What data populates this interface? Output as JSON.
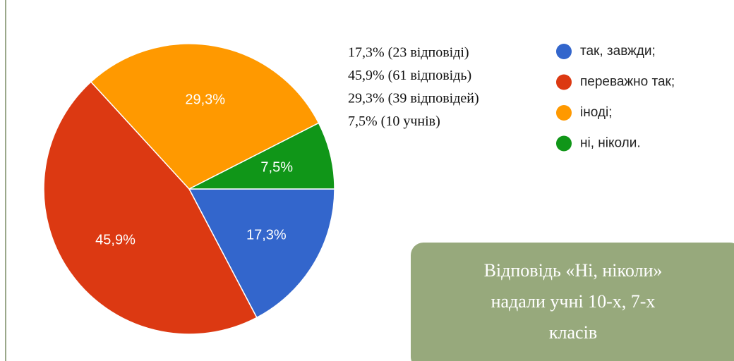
{
  "chart_data": {
    "type": "pie",
    "categories": [
      "так, завжди;",
      "переважно так;",
      "іноді;",
      "ні, ніколи."
    ],
    "values": [
      17.3,
      45.9,
      29.3,
      7.5
    ],
    "value_labels": [
      "17,3%",
      "45,9%",
      "29,3%",
      "7,5%"
    ],
    "colors": [
      "#3366cc",
      "#dc3912",
      "#ff9900",
      "#109618"
    ],
    "annotations": [
      "17,3% (23 відповіді)",
      "45,9% (61 відповідь)",
      "29,3% (39 відповідей)",
      "7,5% (10 учнів)"
    ],
    "callout": [
      "Відповідь «Ні, ніколи»",
      "надали учні 10-х, 7-х",
      "класів"
    ]
  }
}
